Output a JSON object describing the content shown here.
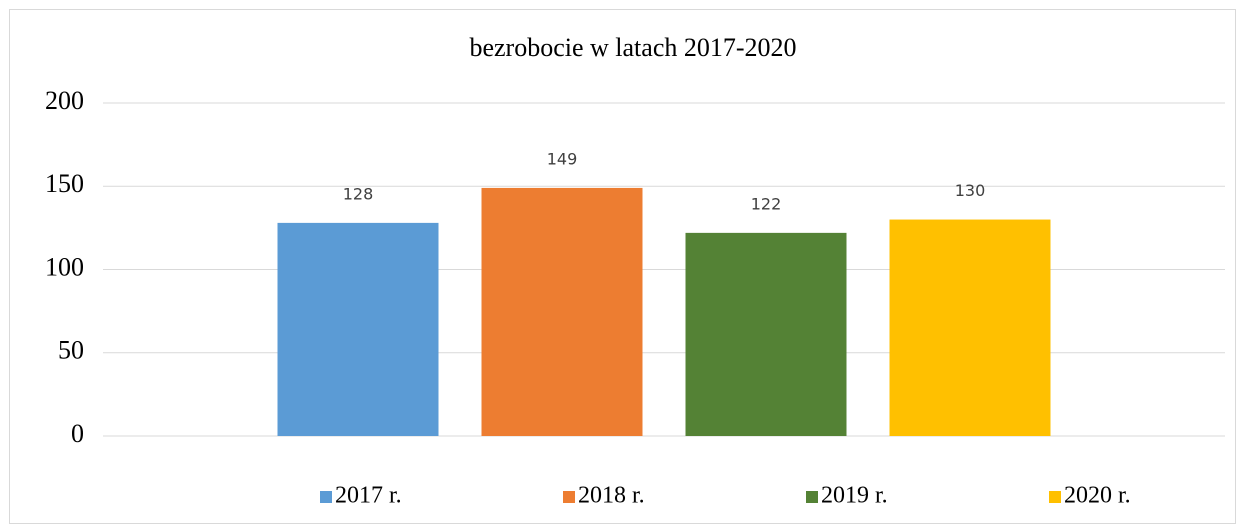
{
  "chart_data": {
    "type": "bar",
    "title": "bezrobocie w latach 2017-2020",
    "categories": [
      null
    ],
    "series": [
      {
        "name": "2017 r.",
        "color": "#5b9bd5",
        "values": [
          128
        ]
      },
      {
        "name": "2018 r.",
        "color": "#ed7d31",
        "values": [
          149
        ]
      },
      {
        "name": "2019 r.",
        "color": "#548235",
        "values": [
          122
        ]
      },
      {
        "name": "2020 r.",
        "color": "#ffc000",
        "values": [
          130
        ]
      }
    ],
    "ylim": [
      0,
      200
    ],
    "yticks": [
      0,
      50,
      100,
      150,
      200
    ],
    "grid": true,
    "legend": "bottom"
  }
}
